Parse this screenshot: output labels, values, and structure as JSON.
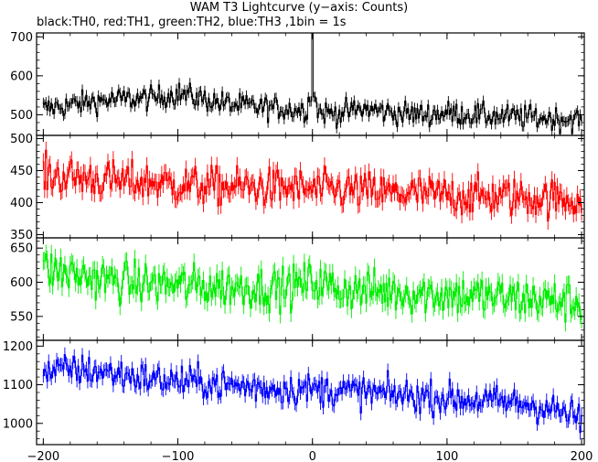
{
  "title": "WAM T3 Lightcurve (y−axis: Counts)",
  "subtitle": "black:TH0, red:TH1, green:TH2, blue:TH3 ,1bin = 1s",
  "chart_data": {
    "type": "line",
    "style": "histogram",
    "xlim": [
      -205,
      202
    ],
    "x_ticks": [
      -200,
      -100,
      0,
      100,
      200
    ],
    "x_tick_labels": [
      "−200",
      "−100",
      "0",
      "100",
      "200"
    ],
    "bin_seconds": 1,
    "series": [
      {
        "name": "TH0",
        "color": "#000000",
        "ylim": [
          447,
          710
        ],
        "y_ticks": [
          500,
          600,
          700
        ],
        "segments": [
          [
            -200,
            515
          ],
          [
            -180,
            525
          ],
          [
            -160,
            535
          ],
          [
            -140,
            540
          ],
          [
            -120,
            542
          ],
          [
            -100,
            555
          ],
          [
            -80,
            540
          ],
          [
            -60,
            525
          ],
          [
            -40,
            520
          ],
          [
            -20,
            515
          ],
          [
            -5,
            512
          ],
          [
            0,
            560
          ],
          [
            5,
            505
          ],
          [
            20,
            505
          ],
          [
            40,
            515
          ],
          [
            60,
            505
          ],
          [
            80,
            500
          ],
          [
            100,
            505
          ],
          [
            120,
            500
          ],
          [
            140,
            495
          ],
          [
            160,
            495
          ],
          [
            180,
            490
          ],
          [
            200,
            488
          ]
        ],
        "noise": 22,
        "spike": {
          "x": 0,
          "value": 710
        }
      },
      {
        "name": "TH1",
        "color": "#ff0000",
        "ylim": [
          345,
          505
        ],
        "y_ticks": [
          350,
          400,
          450,
          500
        ],
        "segments": [
          [
            -200,
            443
          ],
          [
            -180,
            440
          ],
          [
            -160,
            437
          ],
          [
            -140,
            433
          ],
          [
            -120,
            432
          ],
          [
            -100,
            428
          ],
          [
            -80,
            426
          ],
          [
            -60,
            425
          ],
          [
            -40,
            424
          ],
          [
            -20,
            423
          ],
          [
            0,
            420
          ],
          [
            20,
            420
          ],
          [
            40,
            418
          ],
          [
            60,
            415
          ],
          [
            80,
            414
          ],
          [
            100,
            412
          ],
          [
            120,
            410
          ],
          [
            140,
            410
          ],
          [
            160,
            408
          ],
          [
            180,
            406
          ],
          [
            200,
            405
          ]
        ],
        "noise": 22
      },
      {
        "name": "TH2",
        "color": "#00ee00",
        "ylim": [
          515,
          665
        ],
        "y_ticks": [
          550,
          600,
          650
        ],
        "segments": [
          [
            -200,
            620
          ],
          [
            -180,
            612
          ],
          [
            -160,
            605
          ],
          [
            -140,
            600
          ],
          [
            -120,
            598
          ],
          [
            -100,
            596
          ],
          [
            -80,
            594
          ],
          [
            -60,
            593
          ],
          [
            -40,
            592
          ],
          [
            -20,
            591
          ],
          [
            0,
            602
          ],
          [
            20,
            590
          ],
          [
            40,
            588
          ],
          [
            60,
            586
          ],
          [
            80,
            584
          ],
          [
            100,
            582
          ],
          [
            120,
            580
          ],
          [
            140,
            578
          ],
          [
            160,
            576
          ],
          [
            180,
            573
          ],
          [
            200,
            570
          ]
        ],
        "noise": 22
      },
      {
        "name": "TH3",
        "color": "#0000ff",
        "ylim": [
          945,
          1215
        ],
        "y_ticks": [
          1000,
          1100,
          1200
        ],
        "segments": [
          [
            -200,
            1130
          ],
          [
            -180,
            1140
          ],
          [
            -160,
            1135
          ],
          [
            -140,
            1125
          ],
          [
            -120,
            1115
          ],
          [
            -100,
            1110
          ],
          [
            -80,
            1105
          ],
          [
            -60,
            1098
          ],
          [
            -40,
            1092
          ],
          [
            -20,
            1090
          ],
          [
            0,
            1088
          ],
          [
            20,
            1085
          ],
          [
            40,
            1080
          ],
          [
            60,
            1075
          ],
          [
            80,
            1070
          ],
          [
            100,
            1065
          ],
          [
            120,
            1060
          ],
          [
            140,
            1055
          ],
          [
            160,
            1050
          ],
          [
            180,
            1035
          ],
          [
            200,
            1010
          ]
        ],
        "noise": 30
      }
    ]
  }
}
